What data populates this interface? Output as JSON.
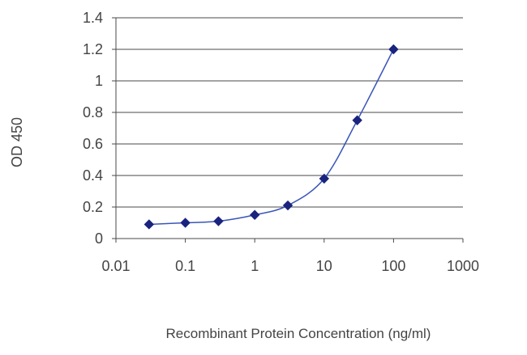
{
  "chart_data": {
    "type": "line",
    "title": "",
    "xlabel": "Recombinant Protein Concentration (ng/ml)",
    "ylabel": "OD 450",
    "xscale": "log",
    "xlim": [
      0.01,
      1000
    ],
    "ylim": [
      0,
      1.4
    ],
    "grid": "horizontal",
    "legend": "none",
    "x_ticks": [
      "0.01",
      "0.1",
      "1",
      "10",
      "100",
      "1000"
    ],
    "y_ticks": [
      "0",
      "0.2",
      "0.4",
      "0.6",
      "0.8",
      "1",
      "1.2",
      "1.4"
    ],
    "series": [
      {
        "marker": "diamond",
        "color": "#1a237e",
        "line_color": "#3a55b8",
        "points": [
          {
            "x": 0.03,
            "y": 0.09
          },
          {
            "x": 0.1,
            "y": 0.1
          },
          {
            "x": 0.3,
            "y": 0.11
          },
          {
            "x": 1,
            "y": 0.15
          },
          {
            "x": 3,
            "y": 0.21
          },
          {
            "x": 10,
            "y": 0.38
          },
          {
            "x": 30,
            "y": 0.75
          },
          {
            "x": 100,
            "y": 1.2
          }
        ]
      }
    ]
  }
}
